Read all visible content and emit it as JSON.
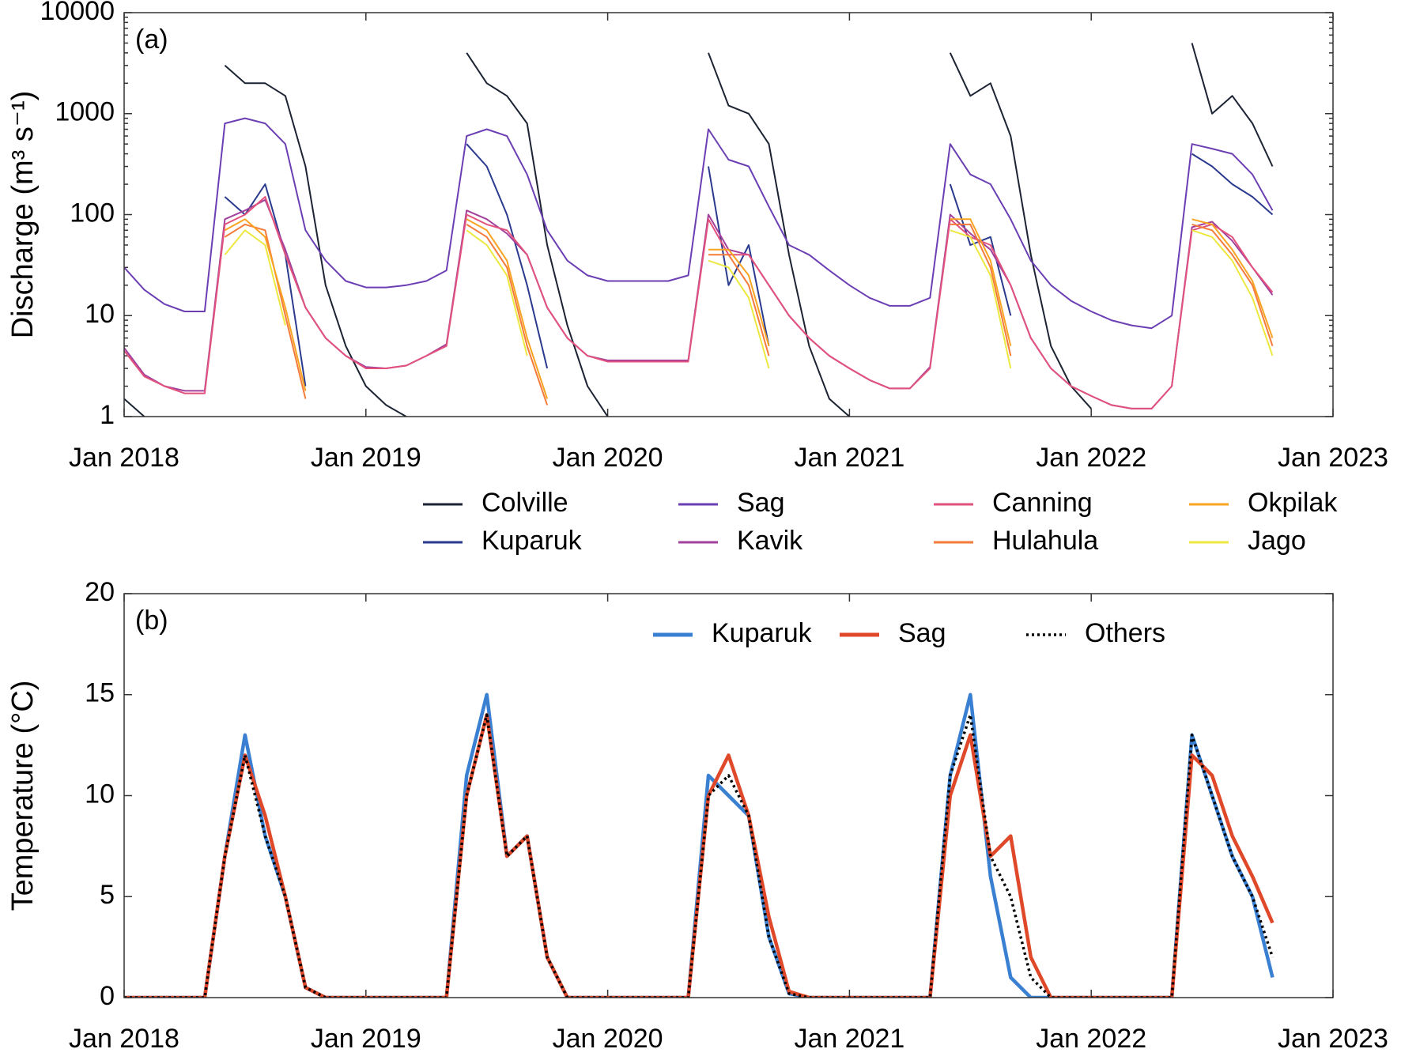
{
  "chart_data": [
    {
      "type": "line",
      "annotation": "(a)",
      "ylabel": "Discharge (m³ s⁻¹)",
      "ylog": true,
      "legend": "below",
      "ylim": [
        1,
        10000
      ],
      "yticks": [
        1,
        10,
        100,
        1000,
        10000
      ],
      "xlim": [
        "2018-01",
        "2023-01"
      ],
      "xticks": [
        {
          "value": "2018-01",
          "label": "Jan 2018"
        },
        {
          "value": "2019-01",
          "label": "Jan 2019"
        },
        {
          "value": "2020-01",
          "label": "Jan 2020"
        },
        {
          "value": "2021-01",
          "label": "Jan 2021"
        },
        {
          "value": "2022-01",
          "label": "Jan 2022"
        },
        {
          "value": "2023-01",
          "label": "Jan 2023"
        }
      ],
      "x": [
        "2018-01",
        "2018-02",
        "2018-03",
        "2018-04",
        "2018-05",
        "2018-06",
        "2018-07",
        "2018-08",
        "2018-09",
        "2018-10",
        "2018-11",
        "2018-12",
        "2019-01",
        "2019-02",
        "2019-03",
        "2019-04",
        "2019-05",
        "2019-06",
        "2019-07",
        "2019-08",
        "2019-09",
        "2019-10",
        "2019-11",
        "2019-12",
        "2020-01",
        "2020-02",
        "2020-03",
        "2020-04",
        "2020-05",
        "2020-06",
        "2020-07",
        "2020-08",
        "2020-09",
        "2020-10",
        "2020-11",
        "2020-12",
        "2021-01",
        "2021-02",
        "2021-03",
        "2021-04",
        "2021-05",
        "2021-06",
        "2021-07",
        "2021-08",
        "2021-09",
        "2021-10",
        "2021-11",
        "2021-12",
        "2022-01",
        "2022-02",
        "2022-03",
        "2022-04",
        "2022-05",
        "2022-06",
        "2022-07",
        "2022-08",
        "2022-09",
        "2022-10"
      ],
      "series": [
        {
          "name": "Colville",
          "color": "#1c2333",
          "values": [
            1.5,
            1,
            null,
            null,
            null,
            3000,
            2000,
            2000,
            1500,
            300,
            20,
            5,
            2,
            1.3,
            1,
            null,
            null,
            4000,
            2000,
            1500,
            800,
            50,
            8,
            2,
            1,
            null,
            null,
            null,
            null,
            4000,
            1200,
            1000,
            500,
            40,
            5,
            1.5,
            1,
            null,
            null,
            null,
            null,
            4000,
            1500,
            2000,
            600,
            40,
            5,
            2,
            1.2,
            null,
            null,
            null,
            null,
            5000,
            1000,
            1500,
            800,
            300
          ]
        },
        {
          "name": "Kuparuk",
          "color": "#2a3a8e",
          "values": [
            null,
            null,
            null,
            null,
            null,
            150,
            100,
            200,
            40,
            2,
            null,
            null,
            null,
            null,
            null,
            null,
            null,
            500,
            300,
            100,
            20,
            3,
            null,
            null,
            null,
            null,
            null,
            null,
            null,
            300,
            20,
            50,
            5,
            null,
            null,
            null,
            null,
            null,
            null,
            null,
            null,
            200,
            50,
            60,
            10,
            null,
            null,
            null,
            null,
            null,
            null,
            null,
            null,
            400,
            300,
            200,
            150,
            100
          ]
        },
        {
          "name": "Sag",
          "color": "#6b3fb3",
          "values": [
            30,
            18,
            13,
            11,
            11,
            800,
            900,
            800,
            500,
            70,
            35,
            22,
            19,
            19,
            20,
            22,
            28,
            600,
            700,
            600,
            250,
            70,
            35,
            25,
            22,
            22,
            22,
            22,
            25,
            700,
            350,
            300,
            120,
            50,
            40,
            28,
            20,
            15,
            12.5,
            12.5,
            15,
            500,
            250,
            200,
            90,
            35,
            20,
            14,
            11,
            9,
            8,
            7.5,
            10,
            500,
            450,
            400,
            250,
            110
          ]
        },
        {
          "name": "Kavik",
          "color": "#a2409c",
          "values": [
            4.8,
            2.6,
            2,
            1.8,
            1.8,
            90,
            110,
            140,
            45,
            12,
            6,
            4,
            3.1,
            3,
            3.2,
            4,
            5.2,
            110,
            90,
            65,
            40,
            12,
            6,
            4,
            3.6,
            3.6,
            3.6,
            3.6,
            3.6,
            100,
            45,
            40,
            20,
            10,
            6,
            4,
            3,
            2.3,
            1.9,
            1.9,
            3.1,
            100,
            65,
            45,
            20,
            6,
            3,
            2,
            1.6,
            1.3,
            1.2,
            1.2,
            2,
            75,
            85,
            55,
            30,
            16
          ]
        },
        {
          "name": "Canning",
          "color": "#e2527c",
          "values": [
            4.5,
            2.5,
            2,
            1.7,
            1.7,
            80,
            100,
            150,
            40,
            12,
            6,
            4,
            3,
            3,
            3.2,
            4,
            5,
            100,
            80,
            70,
            40,
            12,
            6,
            4,
            3.5,
            3.5,
            3.5,
            3.5,
            3.5,
            90,
            40,
            40,
            20,
            10,
            6,
            4,
            3,
            2.3,
            1.9,
            1.9,
            3,
            90,
            60,
            50,
            20,
            6,
            3,
            2,
            1.6,
            1.3,
            1.2,
            1.2,
            2,
            70,
            80,
            60,
            30,
            17
          ]
        },
        {
          "name": "Hulahula",
          "color": "#f47b3a",
          "values": [
            null,
            null,
            null,
            null,
            null,
            60,
            80,
            70,
            10,
            1.5,
            null,
            null,
            null,
            null,
            null,
            null,
            null,
            80,
            60,
            30,
            5,
            1.3,
            null,
            null,
            null,
            null,
            null,
            null,
            null,
            40,
            40,
            20,
            4,
            null,
            null,
            null,
            null,
            null,
            null,
            null,
            null,
            80,
            80,
            30,
            4,
            null,
            null,
            null,
            null,
            null,
            null,
            null,
            null,
            80,
            70,
            40,
            20,
            5
          ]
        },
        {
          "name": "Okpilak",
          "color": "#f8a422",
          "values": [
            null,
            null,
            null,
            null,
            null,
            70,
            90,
            60,
            12,
            1.8,
            null,
            null,
            null,
            null,
            null,
            null,
            null,
            90,
            70,
            35,
            6,
            1.5,
            null,
            null,
            null,
            null,
            null,
            null,
            null,
            45,
            45,
            25,
            5,
            null,
            null,
            null,
            null,
            null,
            null,
            null,
            null,
            90,
            90,
            35,
            5,
            null,
            null,
            null,
            null,
            null,
            null,
            null,
            null,
            90,
            80,
            45,
            22,
            6
          ]
        },
        {
          "name": "Jago",
          "color": "#ece840",
          "values": [
            null,
            null,
            null,
            null,
            null,
            40,
            70,
            50,
            8,
            null,
            null,
            null,
            null,
            null,
            null,
            null,
            null,
            70,
            50,
            25,
            4,
            null,
            null,
            null,
            null,
            null,
            null,
            null,
            null,
            35,
            30,
            15,
            3,
            null,
            null,
            null,
            null,
            null,
            null,
            null,
            null,
            70,
            60,
            25,
            3,
            null,
            null,
            null,
            null,
            null,
            null,
            null,
            null,
            70,
            60,
            35,
            15,
            4
          ]
        }
      ]
    },
    {
      "type": "line",
      "annotation": "(b)",
      "ylabel": "Temperature (°C)",
      "ylog": false,
      "legend": "top",
      "ylim": [
        0,
        20
      ],
      "yticks": [
        0,
        5,
        10,
        15,
        20
      ],
      "xlim": [
        "2018-01",
        "2023-01"
      ],
      "xticks": [
        {
          "value": "2018-01",
          "label": "Jan 2018"
        },
        {
          "value": "2019-01",
          "label": "Jan 2019"
        },
        {
          "value": "2020-01",
          "label": "Jan 2020"
        },
        {
          "value": "2021-01",
          "label": "Jan 2021"
        },
        {
          "value": "2022-01",
          "label": "Jan 2022"
        },
        {
          "value": "2023-01",
          "label": "Jan 2023"
        }
      ],
      "x": [
        "2018-01",
        "2018-02",
        "2018-03",
        "2018-04",
        "2018-05",
        "2018-06",
        "2018-07",
        "2018-08",
        "2018-09",
        "2018-10",
        "2018-11",
        "2018-12",
        "2019-01",
        "2019-02",
        "2019-03",
        "2019-04",
        "2019-05",
        "2019-06",
        "2019-07",
        "2019-08",
        "2019-09",
        "2019-10",
        "2019-11",
        "2019-12",
        "2020-01",
        "2020-02",
        "2020-03",
        "2020-04",
        "2020-05",
        "2020-06",
        "2020-07",
        "2020-08",
        "2020-09",
        "2020-10",
        "2020-11",
        "2020-12",
        "2021-01",
        "2021-02",
        "2021-03",
        "2021-04",
        "2021-05",
        "2021-06",
        "2021-07",
        "2021-08",
        "2021-09",
        "2021-10",
        "2021-11",
        "2021-12",
        "2022-01",
        "2022-02",
        "2022-03",
        "2022-04",
        "2022-05",
        "2022-06",
        "2022-07",
        "2022-08",
        "2022-09",
        "2022-10"
      ],
      "series": [
        {
          "name": "Kuparuk",
          "color": "#3a80d2",
          "style": "solid",
          "values": [
            0,
            0,
            0,
            0,
            0,
            7,
            13,
            8,
            5,
            0.5,
            0,
            0,
            0,
            0,
            0,
            0,
            0,
            11,
            15,
            7,
            8,
            2,
            0,
            0,
            0,
            0,
            0,
            0,
            0,
            11,
            10,
            9,
            3,
            0.2,
            0,
            0,
            0,
            0,
            0,
            0,
            0,
            11,
            15,
            6,
            1,
            0,
            0,
            0,
            0,
            0,
            0,
            0,
            0,
            13,
            10,
            7,
            5,
            1
          ]
        },
        {
          "name": "Sag",
          "color": "#e0482a",
          "style": "solid",
          "values": [
            0,
            0,
            0,
            0,
            0,
            7,
            12,
            9,
            5,
            0.5,
            0,
            0,
            0,
            0,
            0,
            0,
            0,
            10,
            14,
            7,
            8,
            2,
            0,
            0,
            0,
            0,
            0,
            0,
            0,
            10,
            12,
            9,
            4,
            0.3,
            0,
            0,
            0,
            0,
            0,
            0,
            0,
            10,
            13,
            7,
            8,
            2,
            0,
            0,
            0,
            0,
            0,
            0,
            0,
            12,
            11,
            8,
            6,
            3.7
          ]
        },
        {
          "name": "Others",
          "color": "#000000",
          "style": "dotted",
          "values": [
            0,
            0,
            0,
            0,
            0,
            7,
            12,
            8,
            5,
            0.5,
            0,
            0,
            0,
            0,
            0,
            0,
            0,
            10,
            14,
            7,
            8,
            2,
            0,
            0,
            0,
            0,
            0,
            0,
            0,
            10,
            11,
            9,
            3,
            0.2,
            0,
            0,
            0,
            0,
            0,
            0,
            0,
            11,
            14,
            7,
            5,
            1,
            0,
            0,
            0,
            0,
            0,
            0,
            0,
            13,
            10,
            7,
            5,
            2
          ]
        }
      ]
    }
  ]
}
